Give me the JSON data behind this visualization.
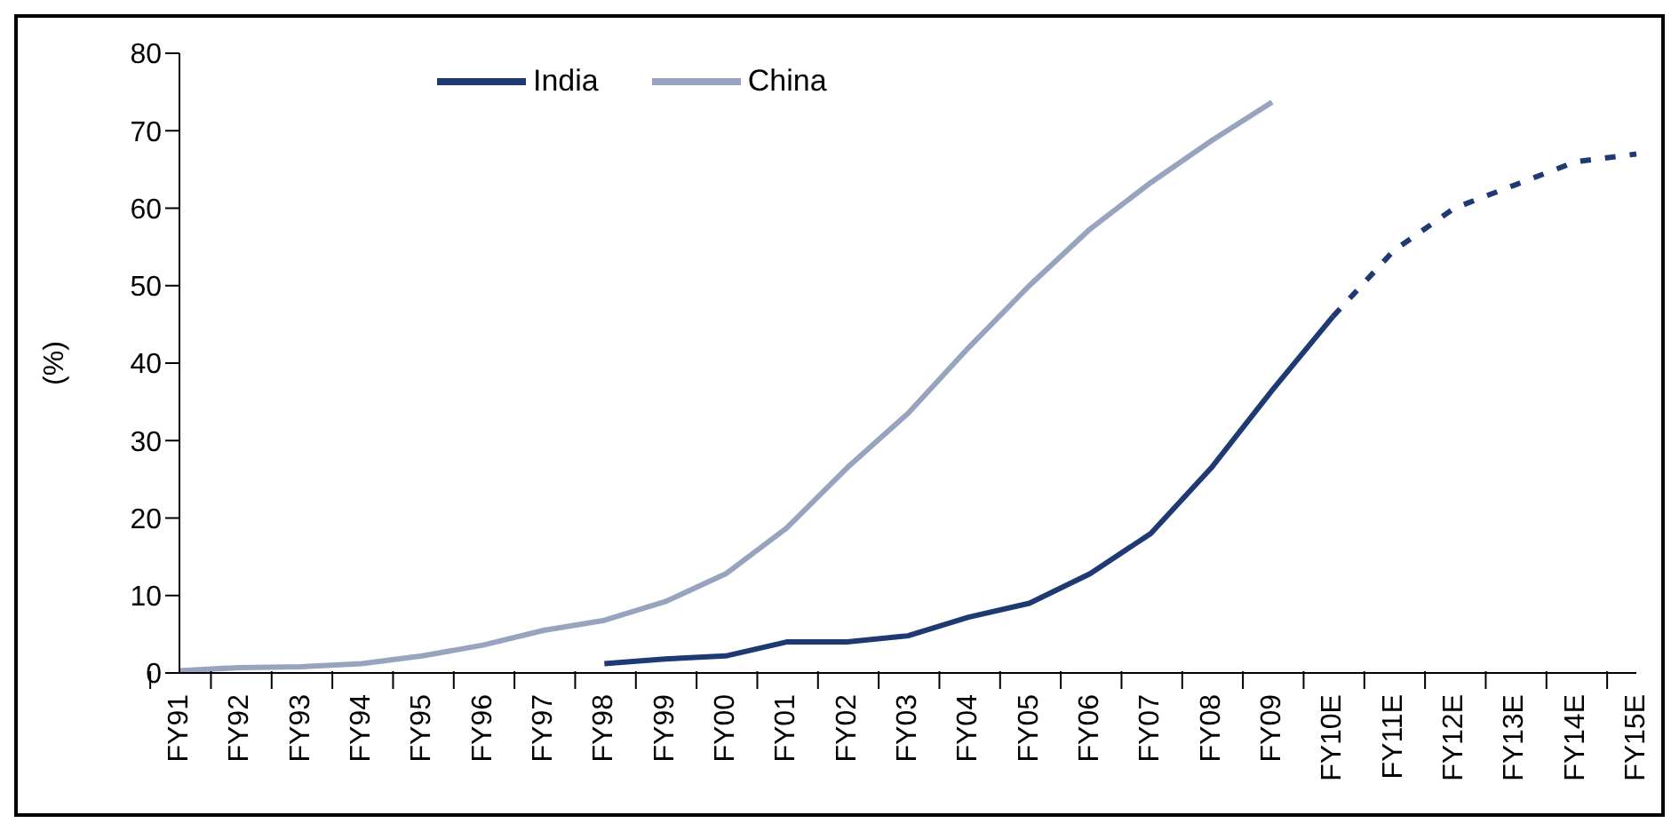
{
  "chart_data": {
    "type": "line",
    "ylabel": "(%)",
    "categories": [
      "FY91",
      "FY92",
      "FY93",
      "FY94",
      "FY95",
      "FY96",
      "FY97",
      "FY98",
      "FY99",
      "FY00",
      "FY01",
      "FY02",
      "FY03",
      "FY04",
      "FY05",
      "FY06",
      "FY07",
      "FY08",
      "FY09",
      "FY10E",
      "FY11E",
      "FY12E",
      "FY13E",
      "FY14E",
      "FY15E"
    ],
    "series": [
      {
        "name": "India",
        "color": "#1f3a73",
        "line_style": "solid",
        "values": [
          null,
          null,
          null,
          null,
          null,
          null,
          null,
          1.2,
          1.8,
          2.2,
          4,
          4,
          4.8,
          7.2,
          9,
          12.8,
          18,
          26.5,
          36.5,
          46,
          null,
          null,
          null,
          null,
          null
        ]
      },
      {
        "name": "China",
        "color": "#98a3bf",
        "line_style": "solid",
        "values": [
          0.3,
          0.7,
          0.8,
          1.2,
          2.2,
          3.6,
          5.5,
          6.8,
          9.2,
          12.8,
          18.7,
          26.5,
          33.5,
          42,
          50,
          57.3,
          63.3,
          68.7,
          73.7,
          null,
          null,
          null,
          null,
          null,
          null
        ]
      },
      {
        "color": "#1f3a73",
        "line_style": "dashed",
        "values": [
          null,
          null,
          null,
          null,
          null,
          null,
          null,
          null,
          null,
          null,
          null,
          null,
          null,
          null,
          null,
          null,
          null,
          null,
          null,
          46,
          54.5,
          60,
          63,
          66,
          67
        ]
      }
    ],
    "ylim": [
      0,
      80
    ],
    "yticks": [
      0,
      10,
      20,
      30,
      40,
      50,
      60,
      70,
      80
    ],
    "grid": false,
    "legend": "top",
    "marker": "none"
  }
}
